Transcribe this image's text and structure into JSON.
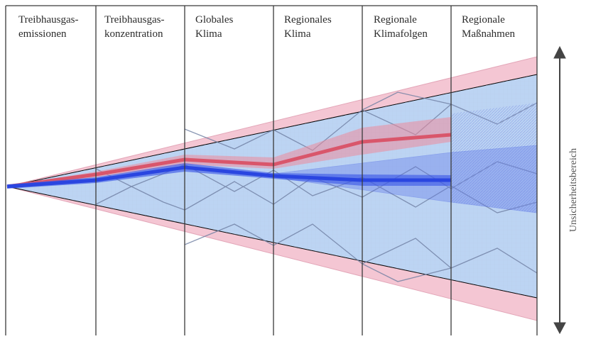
{
  "columns": [
    {
      "label": "Treibhausgas-\nemissionen"
    },
    {
      "label": "Treibhausgas-\nkonzentration"
    },
    {
      "label": "Globales\nKlima"
    },
    {
      "label": "Regionales\nKlima"
    },
    {
      "label": "Regionale\nKlimafolgen"
    },
    {
      "label": "Regionale\nMaßnahmen"
    }
  ],
  "uncertainty_label": "Unsicherheitsbereich",
  "colors": {
    "outer_cone": "#f4c6d3",
    "inner_cone": "#bcd4f3",
    "red_band": "#d9566b",
    "blue_band": "#2a45e0",
    "grid_line": "#b8c6e6",
    "divider": "#3a3a3a"
  }
}
